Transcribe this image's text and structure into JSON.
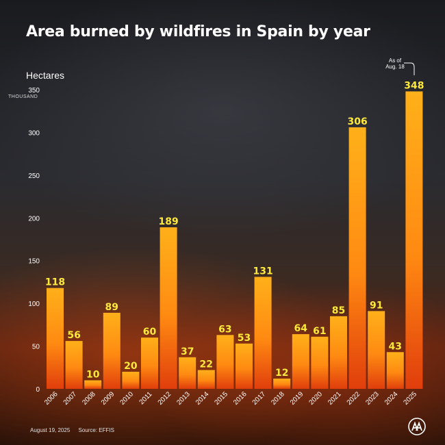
{
  "title": "Area burned by wildfires in Spain by year",
  "unit_label": "Hectares",
  "unit_multiplier": "THOUSAND",
  "note": {
    "line1": "As of",
    "line2": "Aug. 18"
  },
  "footer": {
    "date": "August 19, 2025",
    "source": "Source: EFFIS"
  },
  "logo": {
    "icon": "aa-logo-icon"
  },
  "colors": {
    "bar_top": "#ff9a10",
    "bar_bottom": "#e8420c",
    "value_label": "#ffe93a",
    "text": "#ffffff"
  },
  "chart_data": {
    "type": "bar",
    "title": "Area burned by wildfires in Spain by year",
    "ylabel": "Hectares",
    "y_unit": "THOUSAND",
    "ylim": [
      0,
      350
    ],
    "yticks": [
      0,
      50,
      100,
      150,
      200,
      250,
      300,
      350
    ],
    "grid": false,
    "categories": [
      "2006",
      "2007",
      "2008",
      "2009",
      "2010",
      "2011",
      "2012",
      "2013",
      "2014",
      "2015",
      "2016",
      "2017",
      "2018",
      "2019",
      "2020",
      "2021",
      "2022",
      "2023",
      "2024",
      "2025"
    ],
    "values": [
      118,
      56,
      10,
      89,
      20,
      60,
      189,
      37,
      22,
      63,
      53,
      131,
      12,
      64,
      61,
      85,
      306,
      91,
      43,
      348
    ],
    "annotation": {
      "category": "2025",
      "text": "As of Aug. 18"
    }
  }
}
